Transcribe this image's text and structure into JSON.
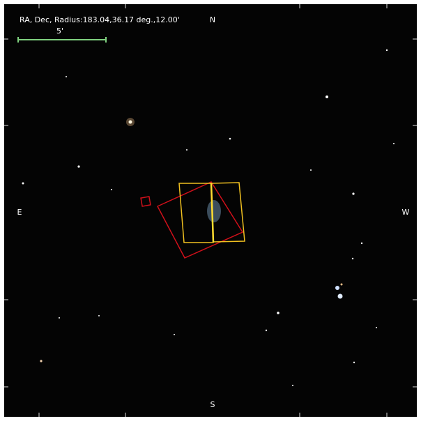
{
  "header": {
    "title": "RA, Dec, Radius:183.04,36.17 deg.,12.00'",
    "scale_label": "5'"
  },
  "compass": {
    "north": "N",
    "south": "S",
    "east": "E",
    "west": "W"
  }
}
